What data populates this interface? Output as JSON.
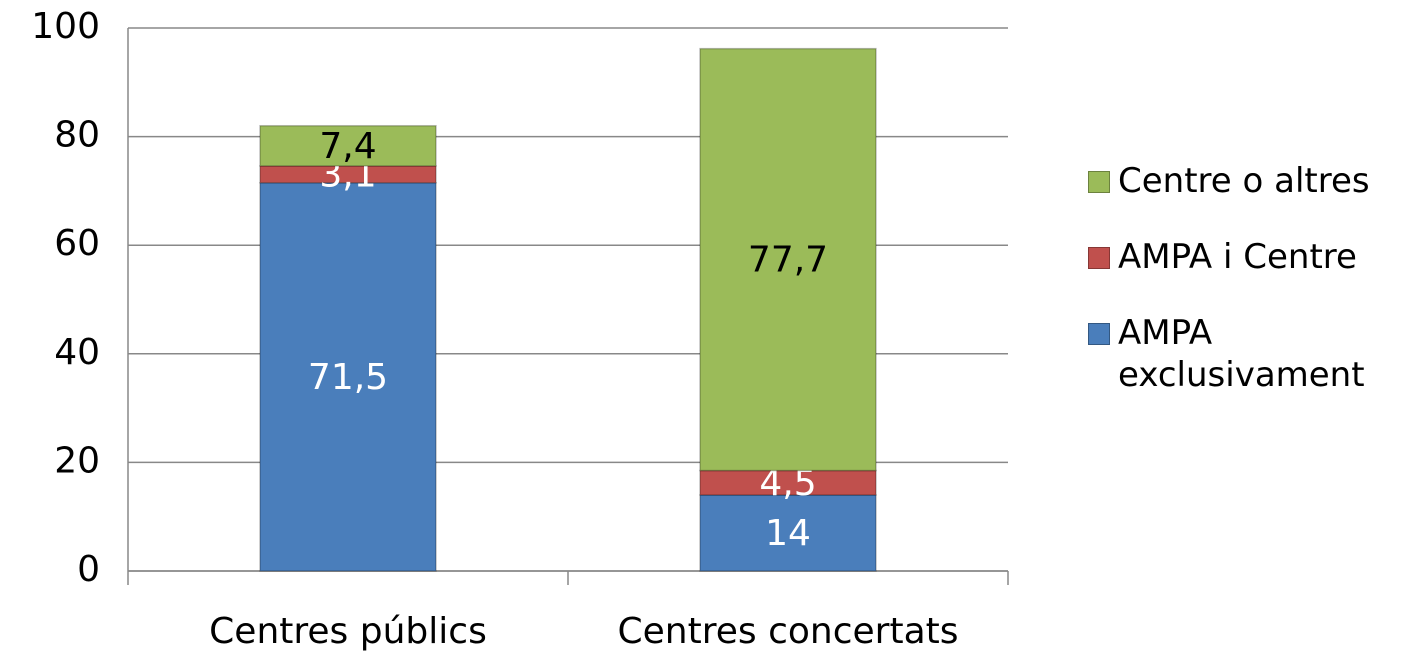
{
  "chart_data": {
    "type": "stacked_bar",
    "categories": [
      "Centres públics",
      "Centres concertats"
    ],
    "series": [
      {
        "name": "AMPA exclusivament",
        "color": "#4a7ebb",
        "label_color": "#ffffff",
        "values": [
          71.5,
          14
        ],
        "value_labels": [
          "71,5",
          "14"
        ]
      },
      {
        "name": "AMPA i Centre",
        "color": "#c0504d",
        "label_color": "#ffffff",
        "values": [
          3.1,
          4.5
        ],
        "value_labels": [
          "3,1",
          "4,5"
        ]
      },
      {
        "name": "Centre o altres",
        "color": "#9bbb59",
        "label_color": "#000000",
        "values": [
          7.4,
          77.7
        ],
        "value_labels": [
          "7,4",
          "77,7"
        ]
      }
    ],
    "ylim": [
      0,
      100
    ],
    "yticks": [
      0,
      20,
      40,
      60,
      80,
      100
    ],
    "grid": true,
    "legend": "right"
  }
}
